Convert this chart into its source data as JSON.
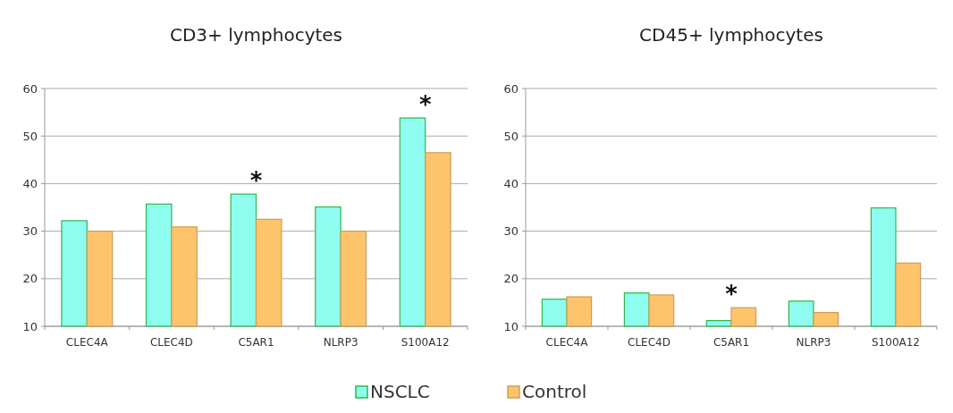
{
  "chart_data": [
    {
      "type": "bar",
      "title": "CD3+ lymphocytes",
      "categories": [
        "CLEC4A",
        "CLEC4D",
        "C5AR1",
        "NLRP3",
        "S100A12"
      ],
      "series": [
        {
          "name": "NSCLC",
          "color": "#8ffcf0",
          "values": [
            32.2,
            35.7,
            37.8,
            35.1,
            53.8
          ]
        },
        {
          "name": "Control",
          "color": "#fdc46c",
          "values": [
            30.0,
            30.9,
            32.5,
            30.0,
            46.5
          ]
        }
      ],
      "ylim": [
        10,
        60
      ],
      "yticks": [
        10,
        20,
        30,
        40,
        50,
        60
      ],
      "grid": "y",
      "legend": "bottom",
      "annotations": [
        {
          "text": "*",
          "x": "C5AR1",
          "y": 37.8
        },
        {
          "text": "*",
          "x": "S100A12",
          "y": 53.8
        }
      ]
    },
    {
      "type": "bar",
      "title": "CD45+ lymphocytes",
      "categories": [
        "CLEC4A",
        "CLEC4D",
        "C5AR1",
        "NLRP3",
        "S100A12"
      ],
      "series": [
        {
          "color": "#8ffcf0",
          "values": [
            15.7,
            17.0,
            11.2,
            15.3,
            34.9
          ]
        },
        {
          "color": "#fdc46c",
          "values": [
            16.2,
            16.6,
            13.9,
            12.9,
            23.3
          ]
        }
      ],
      "ylim": [
        10,
        60
      ],
      "yticks": [
        10,
        20,
        30,
        40,
        50,
        60
      ],
      "grid": "y",
      "annotations": [
        {
          "text": "*",
          "x": "C5AR1",
          "y": 13.9
        }
      ]
    }
  ]
}
